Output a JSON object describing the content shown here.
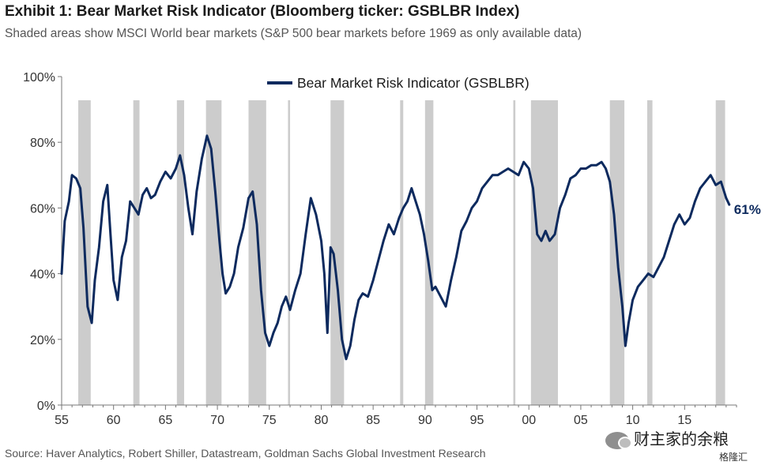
{
  "header": {
    "title": "Exhibit 1: Bear Market Risk Indicator (Bloomberg ticker: GSBLBR Index)",
    "subtitle": "Shaded areas show MSCI World bear markets (S&P 500 bear markets before 1969 as only available data)"
  },
  "footer": {
    "source": "Source: Haver Analytics, Robert Shiller, Datastream, Goldman Sachs Global Investment Research",
    "watermark": "财主家的余粮",
    "watermark2": "格隆汇"
  },
  "colors": {
    "line": "#0d2a5e",
    "shade": "#cccccc",
    "axis": "#777777"
  },
  "chart_data": {
    "type": "line",
    "title": "",
    "xlabel": "",
    "ylabel": "",
    "xlim": [
      1955,
      2020
    ],
    "ylim": [
      0,
      100
    ],
    "x_tick_values": [
      1955,
      1960,
      1965,
      1970,
      1975,
      1980,
      1985,
      1990,
      1995,
      2000,
      2005,
      2010,
      2015
    ],
    "x_tick_labels": [
      "55",
      "60",
      "65",
      "70",
      "75",
      "80",
      "85",
      "90",
      "95",
      "00",
      "05",
      "10",
      "15"
    ],
    "y_tick_values": [
      0,
      20,
      40,
      60,
      80,
      100
    ],
    "y_tick_labels": [
      "0%",
      "20%",
      "40%",
      "60%",
      "80%",
      "100%"
    ],
    "legend": {
      "position": "top-center",
      "label": "Bear Market Risk Indicator (GSBLBR)"
    },
    "end_label": "61%",
    "bear_markets": [
      [
        1956.6,
        1957.8
      ],
      [
        1961.9,
        1962.5
      ],
      [
        1966.1,
        1966.8
      ],
      [
        1968.9,
        1970.4
      ],
      [
        1973.0,
        1974.7
      ],
      [
        1976.8,
        1977.0
      ],
      [
        1980.9,
        1982.2
      ],
      [
        1987.6,
        1987.9
      ],
      [
        1990.0,
        1990.8
      ],
      [
        1998.5,
        1998.7
      ],
      [
        2000.2,
        2002.8
      ],
      [
        2007.8,
        2009.2
      ],
      [
        2011.4,
        2011.9
      ],
      [
        2018.0,
        2018.9
      ]
    ],
    "series": [
      {
        "name": "Bear Market Risk Indicator (GSBLBR)",
        "x": [
          1955.0,
          1955.3,
          1955.7,
          1956.0,
          1956.4,
          1956.8,
          1957.1,
          1957.5,
          1957.9,
          1958.2,
          1958.6,
          1959.0,
          1959.4,
          1959.7,
          1960.0,
          1960.4,
          1960.8,
          1961.2,
          1961.6,
          1962.0,
          1962.4,
          1962.8,
          1963.2,
          1963.6,
          1964.0,
          1964.5,
          1965.0,
          1965.5,
          1966.0,
          1966.4,
          1966.8,
          1967.2,
          1967.6,
          1968.0,
          1968.5,
          1969.0,
          1969.4,
          1969.8,
          1970.2,
          1970.5,
          1970.8,
          1971.2,
          1971.6,
          1972.0,
          1972.5,
          1973.0,
          1973.4,
          1973.8,
          1974.2,
          1974.6,
          1975.0,
          1975.4,
          1975.8,
          1976.2,
          1976.6,
          1977.0,
          1977.5,
          1978.0,
          1978.5,
          1979.0,
          1979.5,
          1980.0,
          1980.3,
          1980.6,
          1980.9,
          1981.2,
          1981.6,
          1982.0,
          1982.4,
          1982.8,
          1983.2,
          1983.6,
          1984.0,
          1984.5,
          1985.0,
          1985.5,
          1986.0,
          1986.5,
          1987.0,
          1987.5,
          1987.9,
          1988.3,
          1988.7,
          1989.1,
          1989.5,
          1989.9,
          1990.3,
          1990.7,
          1991.0,
          1991.5,
          1992.0,
          1992.5,
          1993.0,
          1993.5,
          1994.0,
          1994.5,
          1995.0,
          1995.5,
          1996.0,
          1996.5,
          1997.0,
          1997.5,
          1998.0,
          1998.5,
          1999.0,
          1999.5,
          2000.0,
          2000.4,
          2000.8,
          2001.2,
          2001.6,
          2002.0,
          2002.5,
          2003.0,
          2003.5,
          2004.0,
          2004.5,
          2005.0,
          2005.5,
          2006.0,
          2006.5,
          2007.0,
          2007.4,
          2007.8,
          2008.2,
          2008.6,
          2009.0,
          2009.3,
          2009.6,
          2010.0,
          2010.5,
          2011.0,
          2011.5,
          2012.0,
          2012.5,
          2013.0,
          2013.5,
          2014.0,
          2014.5,
          2015.0,
          2015.5,
          2016.0,
          2016.5,
          2017.0,
          2017.5,
          2018.0,
          2018.5,
          2019.0,
          2019.3
        ],
        "y": [
          40,
          56,
          62,
          70,
          69,
          66,
          54,
          30,
          25,
          38,
          48,
          62,
          67,
          52,
          38,
          32,
          45,
          50,
          62,
          60,
          58,
          64,
          66,
          63,
          64,
          68,
          71,
          69,
          72,
          76,
          70,
          60,
          52,
          65,
          75,
          82,
          78,
          65,
          50,
          40,
          34,
          36,
          40,
          48,
          54,
          63,
          65,
          55,
          35,
          22,
          18,
          22,
          25,
          30,
          33,
          29,
          35,
          40,
          52,
          63,
          58,
          50,
          40,
          22,
          48,
          46,
          35,
          20,
          14,
          18,
          26,
          32,
          34,
          33,
          38,
          44,
          50,
          55,
          52,
          57,
          60,
          62,
          66,
          62,
          58,
          52,
          44,
          35,
          36,
          33,
          30,
          38,
          45,
          53,
          56,
          60,
          62,
          66,
          68,
          70,
          70,
          71,
          72,
          71,
          70,
          74,
          72,
          66,
          52,
          50,
          53,
          50,
          52,
          60,
          64,
          69,
          70,
          72,
          72,
          73,
          73,
          74,
          72,
          68,
          58,
          42,
          30,
          18,
          25,
          32,
          36,
          38,
          40,
          39,
          42,
          45,
          50,
          55,
          58,
          55,
          57,
          62,
          66,
          68,
          70,
          67,
          68,
          63,
          61
        ]
      }
    ]
  }
}
